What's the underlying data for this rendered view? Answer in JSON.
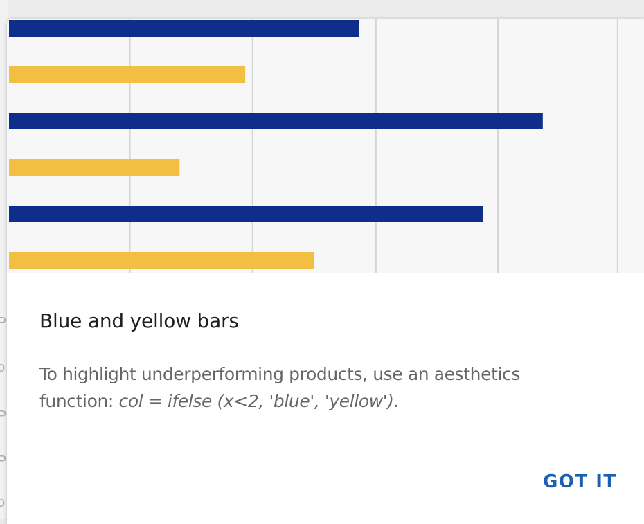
{
  "dialog": {
    "title": "Blue and yellow bars",
    "body_prefix": "To highlight underperforming products, use an aesthetics function: ",
    "body_code": "col = ifelse (x<2, 'blue', 'yellow').",
    "confirm_label": "GOT IT"
  },
  "colors": {
    "blue": "#0f2e8c",
    "yellow": "#f2bf42",
    "gridline": "#d4d6d5",
    "chart_background": "#f6f7f6",
    "button_text": "#1a5fb4"
  },
  "chart_data": {
    "type": "bar",
    "orientation": "horizontal",
    "xlim": [
      0,
      100
    ],
    "grid": true,
    "bars": [
      {
        "value": 57,
        "color": "blue"
      },
      {
        "value": 38.5,
        "color": "yellow"
      },
      {
        "value": 87,
        "color": "blue"
      },
      {
        "value": 27.8,
        "color": "yellow"
      },
      {
        "value": 77.3,
        "color": "blue"
      },
      {
        "value": 49.7,
        "color": "yellow"
      }
    ],
    "gridlines": [
      19.7,
      39.7,
      59.8,
      79.7,
      99.2
    ]
  },
  "backdrop": {
    "edge_chars": [
      "P",
      "o",
      "P",
      "P",
      "o"
    ]
  }
}
